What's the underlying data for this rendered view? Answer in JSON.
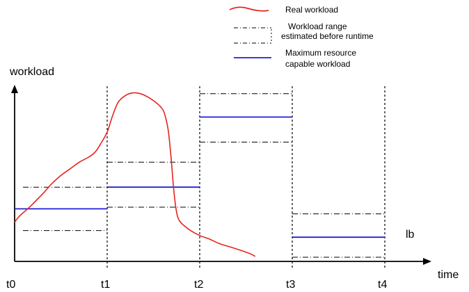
{
  "legend": {
    "items": [
      {
        "lines": [
          "Real workload"
        ],
        "style": "real",
        "color": "#e8231e"
      },
      {
        "lines": [
          "Workload range",
          "estimated before runtime"
        ],
        "style": "range",
        "color": "#000000"
      },
      {
        "lines": [
          "Maximum resource",
          "capable workload"
        ],
        "style": "capacity",
        "color": "#1f1fd6"
      }
    ]
  },
  "axes": {
    "y_label": "workload",
    "x_label": "time"
  },
  "time_marks": [
    "t0",
    "t1",
    "t2",
    "t3",
    "t4"
  ],
  "annotation": "lb",
  "colors": {
    "real_workload": "#e8231e",
    "capacity": "#1f1fd6",
    "range": "#000000"
  },
  "intervals": [
    {
      "from": "t0",
      "to": "t1",
      "range_high": 0.42,
      "range_low": 0.16,
      "capacity": 0.29
    },
    {
      "from": "t1",
      "to": "t2",
      "range_high": 0.57,
      "range_low": 0.3,
      "capacity": 0.42
    },
    {
      "from": "t2",
      "to": "t3",
      "range_high": 0.98,
      "range_low": 0.69,
      "capacity": 0.84
    },
    {
      "from": "t3",
      "to": "t4",
      "range_high": 0.26,
      "range_low": 0.0,
      "capacity": 0.12
    }
  ],
  "real_workload_series": [
    [
      0.0,
      0.21
    ],
    [
      0.05,
      0.245
    ],
    [
      0.12,
      0.28
    ],
    [
      0.18,
      0.31
    ],
    [
      0.25,
      0.35
    ],
    [
      0.32,
      0.39
    ],
    [
      0.4,
      0.44
    ],
    [
      0.5,
      0.49
    ],
    [
      0.6,
      0.53
    ],
    [
      0.7,
      0.57
    ],
    [
      0.8,
      0.6
    ],
    [
      0.87,
      0.63
    ],
    [
      0.93,
      0.68
    ],
    [
      1.0,
      0.75
    ],
    [
      1.06,
      0.85
    ],
    [
      1.12,
      0.93
    ],
    [
      1.2,
      0.97
    ],
    [
      1.28,
      0.985
    ],
    [
      1.36,
      0.98
    ],
    [
      1.44,
      0.96
    ],
    [
      1.52,
      0.93
    ],
    [
      1.58,
      0.9
    ],
    [
      1.62,
      0.86
    ],
    [
      1.66,
      0.76
    ],
    [
      1.69,
      0.6
    ],
    [
      1.72,
      0.4
    ],
    [
      1.75,
      0.27
    ],
    [
      1.78,
      0.22
    ],
    [
      1.83,
      0.19
    ],
    [
      1.9,
      0.16
    ],
    [
      2.0,
      0.13
    ],
    [
      2.1,
      0.11
    ],
    [
      2.22,
      0.08
    ],
    [
      2.34,
      0.06
    ],
    [
      2.45,
      0.04
    ],
    [
      2.55,
      0.02
    ],
    [
      2.6,
      0.005
    ]
  ]
}
